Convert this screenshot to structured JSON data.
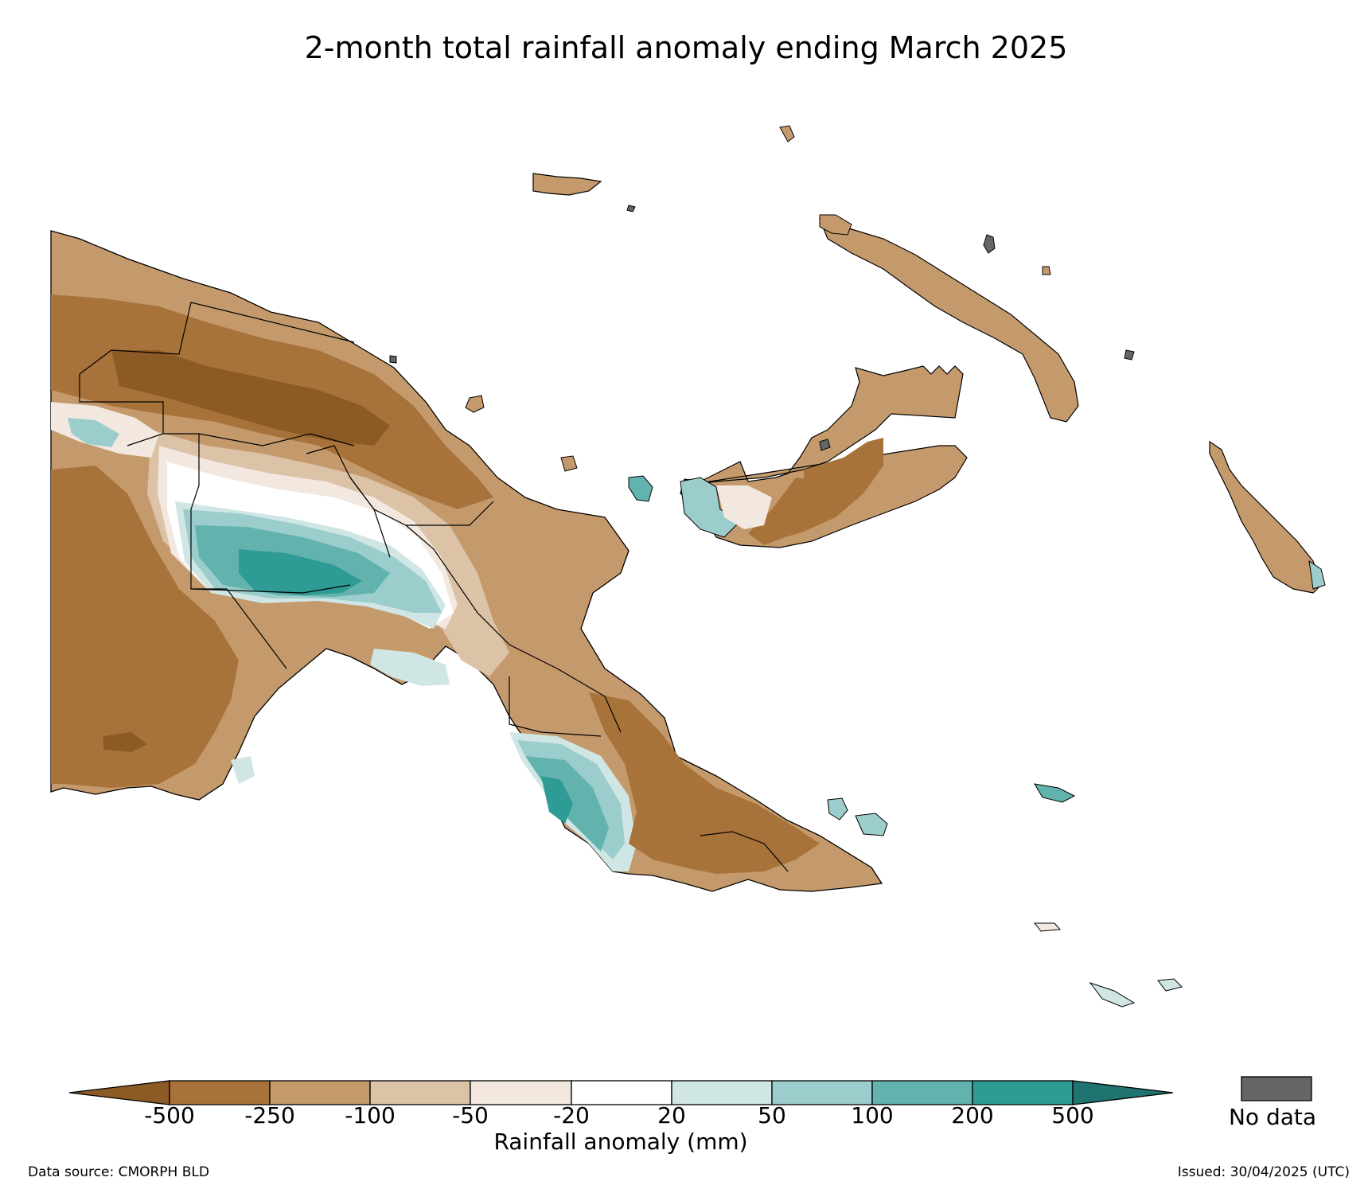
{
  "title": "2-month total rainfall anomaly ending March 2025",
  "colorbar": {
    "title": "Rainfall anomaly (mm)",
    "tick_labels": [
      "-500",
      "-250",
      "-100",
      "-50",
      "-20",
      "20",
      "50",
      "100",
      "200",
      "500"
    ],
    "bins": [
      {
        "range": "< -500",
        "color": "#8c5a24"
      },
      {
        "range": "-500 to -250",
        "color": "#a8733a"
      },
      {
        "range": "-250 to -100",
        "color": "#c49a6c"
      },
      {
        "range": "-100 to -50",
        "color": "#dcc2a6"
      },
      {
        "range": "-50 to -20",
        "color": "#f2e8df"
      },
      {
        "range": "-20 to 20",
        "color": "#ffffff"
      },
      {
        "range": "20 to 50",
        "color": "#cfe6e5"
      },
      {
        "range": "50 to 100",
        "color": "#9acdcb"
      },
      {
        "range": "100 to 200",
        "color": "#62b3ae"
      },
      {
        "range": "200 to 500",
        "color": "#2f9b95"
      },
      {
        "range": "> 500",
        "color": "#1f7370"
      }
    ],
    "extend": "both"
  },
  "no_data": {
    "label": "No data",
    "color": "#666666"
  },
  "footer": {
    "source": "Data source: CMORPH BLD",
    "issued": "Issued: 30/04/2025 (UTC)"
  }
}
